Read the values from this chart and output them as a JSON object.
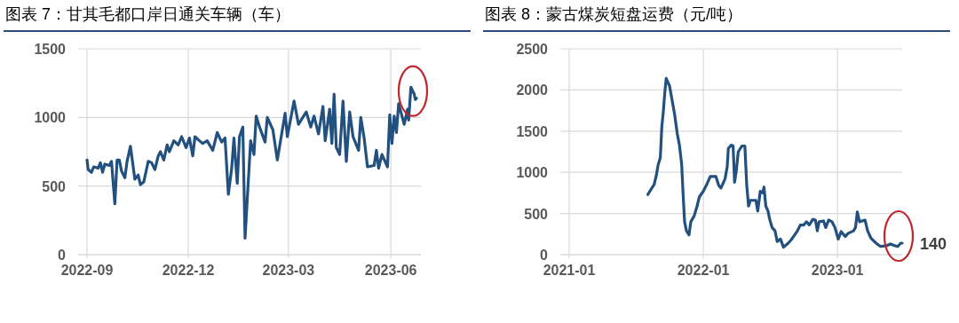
{
  "chart_data": [
    {
      "type": "line",
      "title": "图表 7：甘其毛都口岸日通关车辆（车）",
      "xlim": [
        "2022-09-01",
        "2023-06-28"
      ],
      "xticks": [
        "2022-09",
        "2022-12",
        "2023-03",
        "2023-06"
      ],
      "ylim": [
        0,
        1500
      ],
      "yticks": [
        0,
        500,
        1000,
        1500
      ],
      "grid": true,
      "x": [
        "2022-09-01",
        "2022-09-02",
        "2022-09-05",
        "2022-09-07",
        "2022-09-11",
        "2022-09-13",
        "2022-09-15",
        "2022-09-17",
        "2022-09-21",
        "2022-09-23",
        "2022-09-26",
        "2022-09-28",
        "2022-09-30",
        "2022-10-02",
        "2022-10-05",
        "2022-10-07",
        "2022-10-10",
        "2022-10-14",
        "2022-10-17",
        "2022-10-19",
        "2022-10-22",
        "2022-10-26",
        "2022-10-29",
        "2022-11-01",
        "2022-11-04",
        "2022-11-06",
        "2022-11-09",
        "2022-11-12",
        "2022-11-14",
        "2022-11-18",
        "2022-11-22",
        "2022-11-25",
        "2022-11-29",
        "2022-12-02",
        "2022-12-05",
        "2022-12-07",
        "2022-12-11",
        "2022-12-14",
        "2022-12-18",
        "2022-12-23",
        "2022-12-27",
        "2022-12-31",
        "2023-01-03",
        "2023-01-06",
        "2023-01-09",
        "2023-01-11",
        "2023-01-14",
        "2023-01-16",
        "2023-01-19",
        "2023-01-21",
        "2023-01-26",
        "2023-01-29",
        "2023-01-31",
        "2023-02-03",
        "2023-02-08",
        "2023-02-10",
        "2023-02-15",
        "2023-02-19",
        "2023-02-26",
        "2023-02-28",
        "2023-03-06",
        "2023-03-10",
        "2023-03-17",
        "2023-03-21",
        "2023-03-24",
        "2023-03-28",
        "2023-04-01",
        "2023-04-03",
        "2023-04-07",
        "2023-04-09",
        "2023-04-11",
        "2023-04-13",
        "2023-04-16",
        "2023-04-19",
        "2023-04-22",
        "2023-04-25",
        "2023-04-28",
        "2023-05-03",
        "2023-05-05",
        "2023-05-08",
        "2023-05-11",
        "2023-05-17",
        "2023-05-19",
        "2023-05-21",
        "2023-05-24",
        "2023-05-29",
        "2023-05-31",
        "2023-06-02",
        "2023-06-04",
        "2023-06-06",
        "2023-06-08",
        "2023-06-13",
        "2023-06-16",
        "2023-06-17",
        "2023-06-19",
        "2023-06-22",
        "2023-06-23",
        "2023-06-24"
      ],
      "series": [
        {
          "color": "#22507f",
          "values": [
            690,
            620,
            600,
            640,
            630,
            670,
            600,
            660,
            650,
            680,
            370,
            690,
            690,
            610,
            560,
            680,
            790,
            550,
            580,
            510,
            530,
            680,
            670,
            620,
            720,
            750,
            690,
            800,
            750,
            830,
            800,
            860,
            780,
            850,
            720,
            860,
            830,
            810,
            830,
            760,
            890,
            820,
            850,
            440,
            630,
            850,
            520,
            860,
            930,
            120,
            830,
            730,
            1010,
            930,
            820,
            1000,
            910,
            690,
            1030,
            860,
            1120,
            950,
            1040,
            930,
            1010,
            880,
            1080,
            830,
            1060,
            810,
            1170,
            780,
            730,
            1120,
            680,
            1040,
            860,
            760,
            1000,
            850,
            640,
            650,
            760,
            630,
            730,
            640,
            1020,
            810,
            1010,
            890,
            1100,
            950,
            1060,
            980,
            1220,
            1170,
            1130,
            1140
          ]
        }
      ]
    },
    {
      "type": "line",
      "title": "图表 8：蒙古煤炭短盘运费（元/吨）",
      "xlim": [
        "2021-01-01",
        "2023-06-26"
      ],
      "xticks": [
        "2021-01",
        "2022-01",
        "2023-01"
      ],
      "ylim": [
        0,
        2500
      ],
      "yticks": [
        0,
        500,
        1000,
        1500,
        2000,
        2500
      ],
      "grid": true,
      "annotations": [
        {
          "text": "140",
          "x": "2023-06-26",
          "y": 140
        }
      ],
      "x": [
        "2021-08-03",
        "2021-08-14",
        "2021-08-20",
        "2021-08-26",
        "2021-08-31",
        "2021-09-06",
        "2021-09-10",
        "2021-09-14",
        "2021-09-18",
        "2021-09-22",
        "2021-09-26",
        "2021-10-01",
        "2021-10-09",
        "2021-10-15",
        "2021-10-22",
        "2021-10-28",
        "2021-11-03",
        "2021-11-07",
        "2021-11-11",
        "2021-11-16",
        "2021-11-23",
        "2021-11-28",
        "2021-12-07",
        "2021-12-15",
        "2021-12-21",
        "2022-01-01",
        "2022-01-11",
        "2022-01-20",
        "2022-02-04",
        "2022-02-12",
        "2022-02-18",
        "2022-03-01",
        "2022-03-07",
        "2022-03-10",
        "2022-03-18",
        "2022-03-23",
        "2022-03-27",
        "2022-04-01",
        "2022-04-06",
        "2022-04-16",
        "2022-04-24",
        "2022-04-29",
        "2022-05-04",
        "2022-05-09",
        "2022-05-24",
        "2022-05-29",
        "2022-06-05",
        "2022-06-12",
        "2022-06-15",
        "2022-06-20",
        "2022-06-26",
        "2022-06-30",
        "2022-07-07",
        "2022-07-15",
        "2022-07-21",
        "2022-07-30",
        "2022-08-07",
        "2022-08-20",
        "2022-08-28",
        "2022-09-05",
        "2022-09-14",
        "2022-09-22",
        "2022-10-01",
        "2022-10-09",
        "2022-10-16",
        "2022-10-26",
        "2022-11-02",
        "2022-11-07",
        "2022-11-12",
        "2022-11-24",
        "2022-11-30",
        "2022-12-08",
        "2022-12-17",
        "2022-12-25",
        "2023-01-03",
        "2023-01-11",
        "2023-01-22",
        "2023-01-30",
        "2023-02-14",
        "2023-02-19",
        "2023-02-24",
        "2023-03-02",
        "2023-03-17",
        "2023-03-24",
        "2023-04-02",
        "2023-04-16",
        "2023-04-28",
        "2023-05-15",
        "2023-05-25",
        "2023-06-05",
        "2023-06-14",
        "2023-06-22",
        "2023-06-26"
      ],
      "series": [
        {
          "color": "#22507f",
          "values": [
            730,
            810,
            850,
            960,
            1090,
            1180,
            1550,
            1730,
            1960,
            2140,
            2100,
            2050,
            1850,
            1700,
            1470,
            1330,
            1100,
            730,
            400,
            290,
            240,
            400,
            470,
            590,
            700,
            770,
            860,
            950,
            950,
            840,
            810,
            920,
            1070,
            1290,
            1330,
            1320,
            880,
            1030,
            1250,
            1320,
            1320,
            850,
            590,
            660,
            660,
            530,
            770,
            750,
            820,
            590,
            530,
            440,
            330,
            290,
            160,
            190,
            90,
            140,
            180,
            230,
            290,
            360,
            360,
            400,
            360,
            430,
            420,
            290,
            400,
            410,
            330,
            420,
            400,
            330,
            190,
            280,
            220,
            260,
            290,
            330,
            520,
            400,
            420,
            290,
            200,
            140,
            100,
            110,
            130,
            110,
            100,
            140,
            140
          ]
        }
      ]
    }
  ]
}
